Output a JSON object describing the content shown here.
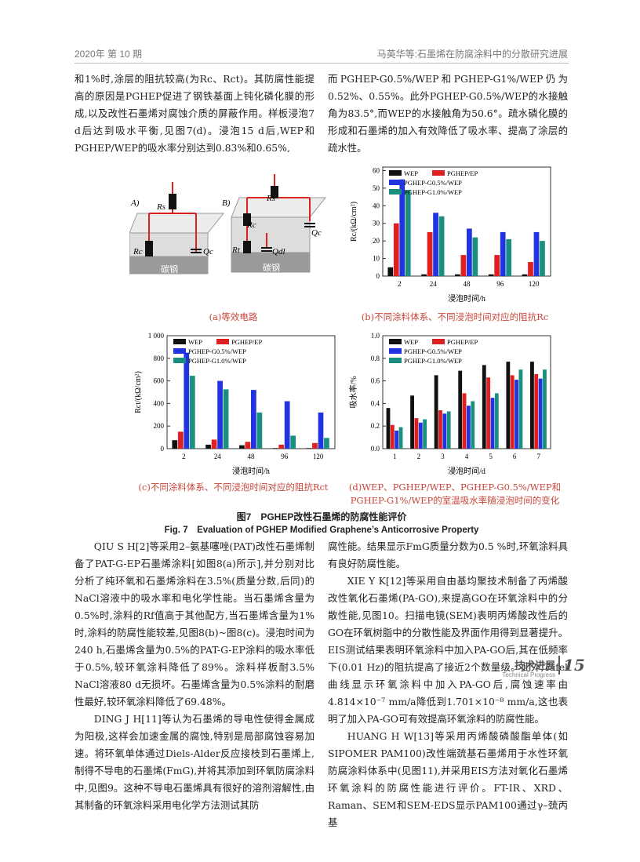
{
  "header": {
    "left": "2020年 第 10 期",
    "right": "马英华等:石墨烯在防腐涂料中的分散研究进展"
  },
  "top_left": [
    "和1%时,涂层的阻抗较高(为Rc、Rct)。其防腐性能提高的原因是PGHEP促进了钢铁基面上钝化磷化膜的形成,以及改性石墨烯对腐蚀介质的屏蔽作用。样板浸泡7 d后达到吸水平衡,见图7(d)。浸泡15 d后,WEP和PGHEP/WEP的吸水率分别达到0.83%和0.65%,"
  ],
  "top_right": [
    "而PGHEP-G0.5%/WEP和PGHEP-G1%/WEP仍为0.52%、0.55%。此外PGHEP-G0.5%/WEP的水接触角为83.5°,而WEP的水接触角为50.6°。疏水磷化膜的形成和石墨烯的加入有效降低了吸水率、提高了涂层的疏水性。"
  ],
  "figure": {
    "diagram": {
      "labels": [
        "A)",
        "B)",
        "Rs",
        "Rc",
        "Qc",
        "碳钢",
        "Rs",
        "Rc",
        "Qc",
        "Rt",
        "Qdl",
        "碳钢"
      ]
    },
    "charts": [
      {
        "type": "bar",
        "y_label": "Rc/(kΩ/cm²)",
        "x_label": "浸泡时间/h",
        "categories": [
          "2",
          "24",
          "48",
          "96",
          "120"
        ],
        "ylim": [
          0,
          62
        ],
        "yticks": [
          0,
          10,
          20,
          30,
          40,
          50,
          60
        ],
        "series": [
          {
            "name": "WEP",
            "color": "#111111",
            "values": [
              5,
              1,
              1,
              1,
              1
            ]
          },
          {
            "name": "PGHEP/EP",
            "color": "#e02020",
            "values": [
              30,
              25,
              12,
              12,
              8
            ]
          },
          {
            "name": "PGHEP-G0.5%/WEP",
            "color": "#2233e0",
            "values": [
              55,
              36,
              27,
              25,
              25
            ]
          },
          {
            "name": "PGHEP-G1.0%/WEP",
            "color": "#1a8f7f",
            "values": [
              49,
              34,
              22,
              21,
              20
            ]
          }
        ]
      },
      {
        "type": "bar",
        "y_label": "Rct/(kΩ/cm²)",
        "x_label": "浸泡时间/h",
        "categories": [
          "2",
          "24",
          "48",
          "96",
          "120"
        ],
        "ylim": [
          0,
          1000
        ],
        "yticks": [
          0,
          200,
          400,
          600,
          800,
          {
            "value": 1000,
            "label": "1 000"
          }
        ],
        "series": [
          {
            "name": "WEP",
            "color": "#111111",
            "values": [
              75,
              35,
              30,
              5,
              5
            ]
          },
          {
            "name": "PGHEP/EP",
            "color": "#e02020",
            "values": [
              150,
              80,
              60,
              35,
              50
            ]
          },
          {
            "name": "PGHEP-G0.5%/WEP",
            "color": "#2233e0",
            "values": [
              850,
              600,
              520,
              420,
              320
            ]
          },
          {
            "name": "PGHEP-G1.0%/WEP",
            "color": "#1a8f7f",
            "values": [
              645,
              525,
              320,
              115,
              95
            ]
          }
        ]
      },
      {
        "type": "bar",
        "y_label": "吸水率/%",
        "x_label": "浸泡时间/d",
        "categories": [
          "1",
          "2",
          "3",
          "4",
          "5",
          "6",
          "7"
        ],
        "ylim": [
          0,
          1
        ],
        "yticks": [
          {
            "value": 0,
            "label": "0.0"
          },
          {
            "value": 0.2,
            "label": "0.2"
          },
          {
            "value": 0.4,
            "label": "0.4"
          },
          {
            "value": 0.6,
            "label": "0.6"
          },
          {
            "value": 0.8,
            "label": "0.8"
          },
          {
            "value": 1,
            "label": "1.0"
          }
        ],
        "series": [
          {
            "name": "WEP",
            "color": "#111111",
            "values": [
              0.36,
              0.47,
              0.65,
              0.69,
              0.74,
              0.77,
              0.77
            ]
          },
          {
            "name": "PGHEP/EP",
            "color": "#e02020",
            "values": [
              0.21,
              0.27,
              0.34,
              0.49,
              0.63,
              0.65,
              0.66
            ]
          },
          {
            "name": "PGHEP-G0.5%/WEP",
            "color": "#2233e0",
            "values": [
              0.16,
              0.23,
              0.31,
              0.38,
              0.45,
              0.61,
              0.62
            ]
          },
          {
            "name": "PGHEP-G1.0%/WEP",
            "color": "#1a8f7f",
            "values": [
              0.19,
              0.26,
              0.33,
              0.42,
              0.49,
              0.7,
              0.7
            ]
          }
        ]
      }
    ],
    "captions": [
      "(a)等效电路",
      "(b)不同涂料体系、不同浸泡时间对应的阻抗Rc",
      "(c)不同涂料体系、不同浸泡时间对应的阻抗Rct",
      "(d)WEP、PGHEP/WEP、PGHEP-G0.5%/WEP和PGHEP-G1%/WEP的室温吸水率随浸泡时间的变化"
    ],
    "title_cn": "图7　PGHEP改性石墨烯的防腐性能评价",
    "title_en": "Fig. 7　Evaluation of PGHEP Modified Graphene’s Anticorrosive Property"
  },
  "bottom_left": [
    "QIU S H[2]等采用2–氨基噻唑(PAT)改性石墨烯制备了PAT-G-EP石墨烯涂料[如图8(a)所示],并分别对比分析了纯环氧和石墨烯涂料在3.5%(质量分数,后同)的NaCl溶液中的吸水率和电化学性能。当石墨烯含量为0.5%时,涂料的Rf值高于其他配方,当石墨烯含量为1%时,涂料的防腐性能较差,见图8(b)~图8(c)。浸泡时间为240 h,石墨烯含量为0.5%的PAT-G-EP涂料的吸水率低于0.5%,较环氧涂料降低了89%。涂料样板耐3.5% NaCl溶液80 d无损坏。石墨烯含量为0.5%涂料的耐磨性最好,较环氧涂料降低了69.48%。",
    "DING J H[11]等认为石墨烯的导电性使得金属成为阳极,这样会加速金属的腐蚀,特别是局部腐蚀容易加速。将环氧单体通过Diels-Alder反应接枝到石墨烯上,制得不导电的石墨烯(FmG),并将其添加到环氧防腐涂料中,见图9。这种不导电石墨烯具有很好的溶剂溶解性,由其制备的环氧涂料采用电化学方法测试其防"
  ],
  "bottom_right": [
    "腐性能。结果显示FmG质量分数为0.5 %时,环氧涂料具有良好防腐性能。",
    "XIE Y K[12]等采用自由基均聚技术制备了丙烯酸改性氧化石墨烯(PA-GO),来提高GO在环氧涂料中的分散性能,见图10。扫描电镜(SEM)表明丙烯酸改性后的GO在环氧树脂中的分散性能及界面作用得到显著提升。EIS测试结果表明环氧涂料中加入PA-GO后,其在低频率下(0.01 Hz)的阻抗提高了接近2个数量级。此外,Tafel曲线显示环氧涂料中加入PA-GO后,腐蚀速率由4.814×10⁻⁷ mm/a降低到1.701×10⁻⁸ mm/a,这也表明了加入PA-GO可有效提高环氧涂料的防腐性能。",
    "HUANG H W[13]等采用丙烯酸磷酸酯单体(如SIPOMER PAM100)改性端巯基石墨烯用于水性环氧防腐涂料体系中(见图11),并采用EIS方法对氧化石墨烯环氧涂料的防腐性能进行评价。FT-IR、XRD、Raman、SEM和SEM-EDS显示PAM100通过γ–巯丙基"
  ],
  "footer": {
    "section_cn": "技术进展",
    "section_en": "Technical Progress",
    "page": 15
  }
}
